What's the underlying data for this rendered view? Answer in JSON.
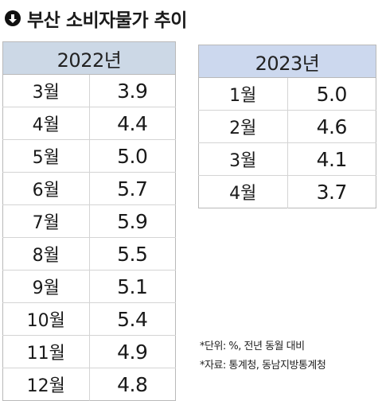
{
  "title": "부산 소비자물가 추이",
  "icon": "arrow-down-circle-icon",
  "chart_data": {
    "type": "table",
    "tables": [
      {
        "header": "2022년",
        "rows": [
          {
            "month": "3월",
            "value": "3.9"
          },
          {
            "month": "4월",
            "value": "4.4"
          },
          {
            "month": "5월",
            "value": "5.0"
          },
          {
            "month": "6월",
            "value": "5.7"
          },
          {
            "month": "7월",
            "value": "5.9"
          },
          {
            "month": "8월",
            "value": "5.5"
          },
          {
            "month": "9월",
            "value": "5.1"
          },
          {
            "month": "10월",
            "value": "5.4"
          },
          {
            "month": "11월",
            "value": "4.9"
          },
          {
            "month": "12월",
            "value": "4.8"
          }
        ]
      },
      {
        "header": "2023년",
        "rows": [
          {
            "month": "1월",
            "value": "5.0"
          },
          {
            "month": "2월",
            "value": "4.6"
          },
          {
            "month": "3월",
            "value": "4.1"
          },
          {
            "month": "4월",
            "value": "3.7"
          }
        ]
      }
    ]
  },
  "notes": {
    "unit": "*단위: %, 전년 동월 대비",
    "source": "*자료: 통계청, 동남지방통계청"
  },
  "colors": {
    "header_2022": "#ccd8e6",
    "header_2023": "#ccd8ee"
  }
}
